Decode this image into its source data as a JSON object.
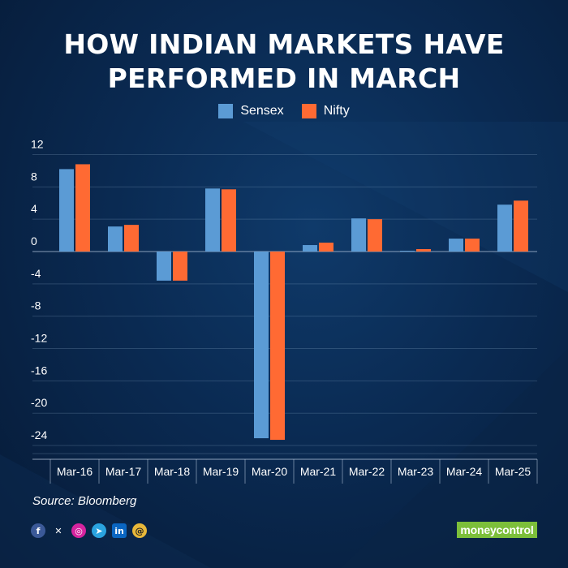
{
  "title_lines": [
    "HOW INDIAN MARKETS HAVE",
    "PERFORMED IN MARCH"
  ],
  "source": "Source: Bloomberg",
  "brand": "moneycontrol",
  "social_icons": [
    "facebook-icon",
    "x-icon",
    "instagram-icon",
    "telegram-icon",
    "linkedin-icon",
    "threads-icon"
  ],
  "colors": {
    "sensex": "#5b9bd5",
    "nifty": "#ff6a33",
    "brand": "#7cbf3a"
  },
  "chart_data": {
    "type": "bar",
    "title": "HOW INDIAN MARKETS HAVE PERFORMED IN MARCH",
    "categories": [
      "Mar-16",
      "Mar-17",
      "Mar-18",
      "Mar-19",
      "Mar-20",
      "Mar-21",
      "Mar-22",
      "Mar-23",
      "Mar-24",
      "Mar-25"
    ],
    "series": [
      {
        "name": "Sensex",
        "values": [
          10.2,
          3.1,
          -3.6,
          7.8,
          -23.1,
          0.8,
          4.1,
          0.1,
          1.6,
          5.8
        ]
      },
      {
        "name": "Nifty",
        "values": [
          10.8,
          3.3,
          -3.6,
          7.7,
          -23.3,
          1.1,
          4.0,
          0.3,
          1.6,
          6.3
        ]
      }
    ],
    "yticks": [
      12,
      8,
      4,
      0,
      -4,
      -8,
      -12,
      -16,
      -20,
      -24
    ],
    "ylim": [
      -24,
      12
    ],
    "xlabel": "",
    "ylabel": "",
    "legend": "top-center",
    "grid": true
  }
}
